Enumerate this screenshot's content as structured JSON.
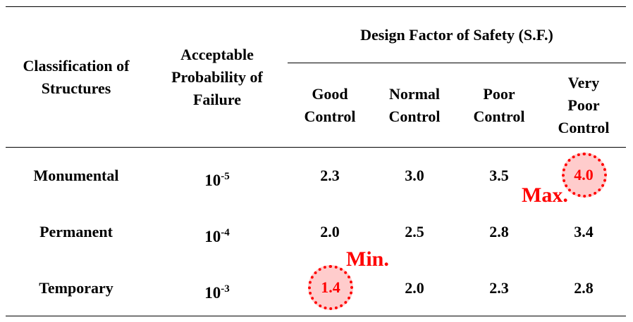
{
  "header": {
    "classification": [
      "Classification of",
      "Structures"
    ],
    "probability": [
      "Acceptable",
      "Probability of",
      "Failure"
    ],
    "design_factor": "Design Factor of Safety (S.F.)",
    "controls": [
      [
        "Good",
        "Control"
      ],
      [
        "Normal",
        "Control"
      ],
      [
        "Poor",
        "Control"
      ],
      [
        "Very",
        "Poor",
        "Control"
      ]
    ]
  },
  "rows": [
    {
      "name": "Monumental",
      "prob_base": "10",
      "prob_exp": "-5",
      "values": [
        "2.3",
        "3.0",
        "3.5",
        "4.0"
      ]
    },
    {
      "name": "Permanent",
      "prob_base": "10",
      "prob_exp": "-4",
      "values": [
        "2.0",
        "2.5",
        "2.8",
        "3.4"
      ]
    },
    {
      "name": "Temporary",
      "prob_base": "10",
      "prob_exp": "-3",
      "values": [
        "1.4",
        "2.0",
        "2.3",
        "2.8"
      ]
    }
  ],
  "annotations": {
    "max_label": "Max.",
    "min_label": "Min.",
    "color": "#ff0000",
    "fill": "#ffcccc"
  }
}
